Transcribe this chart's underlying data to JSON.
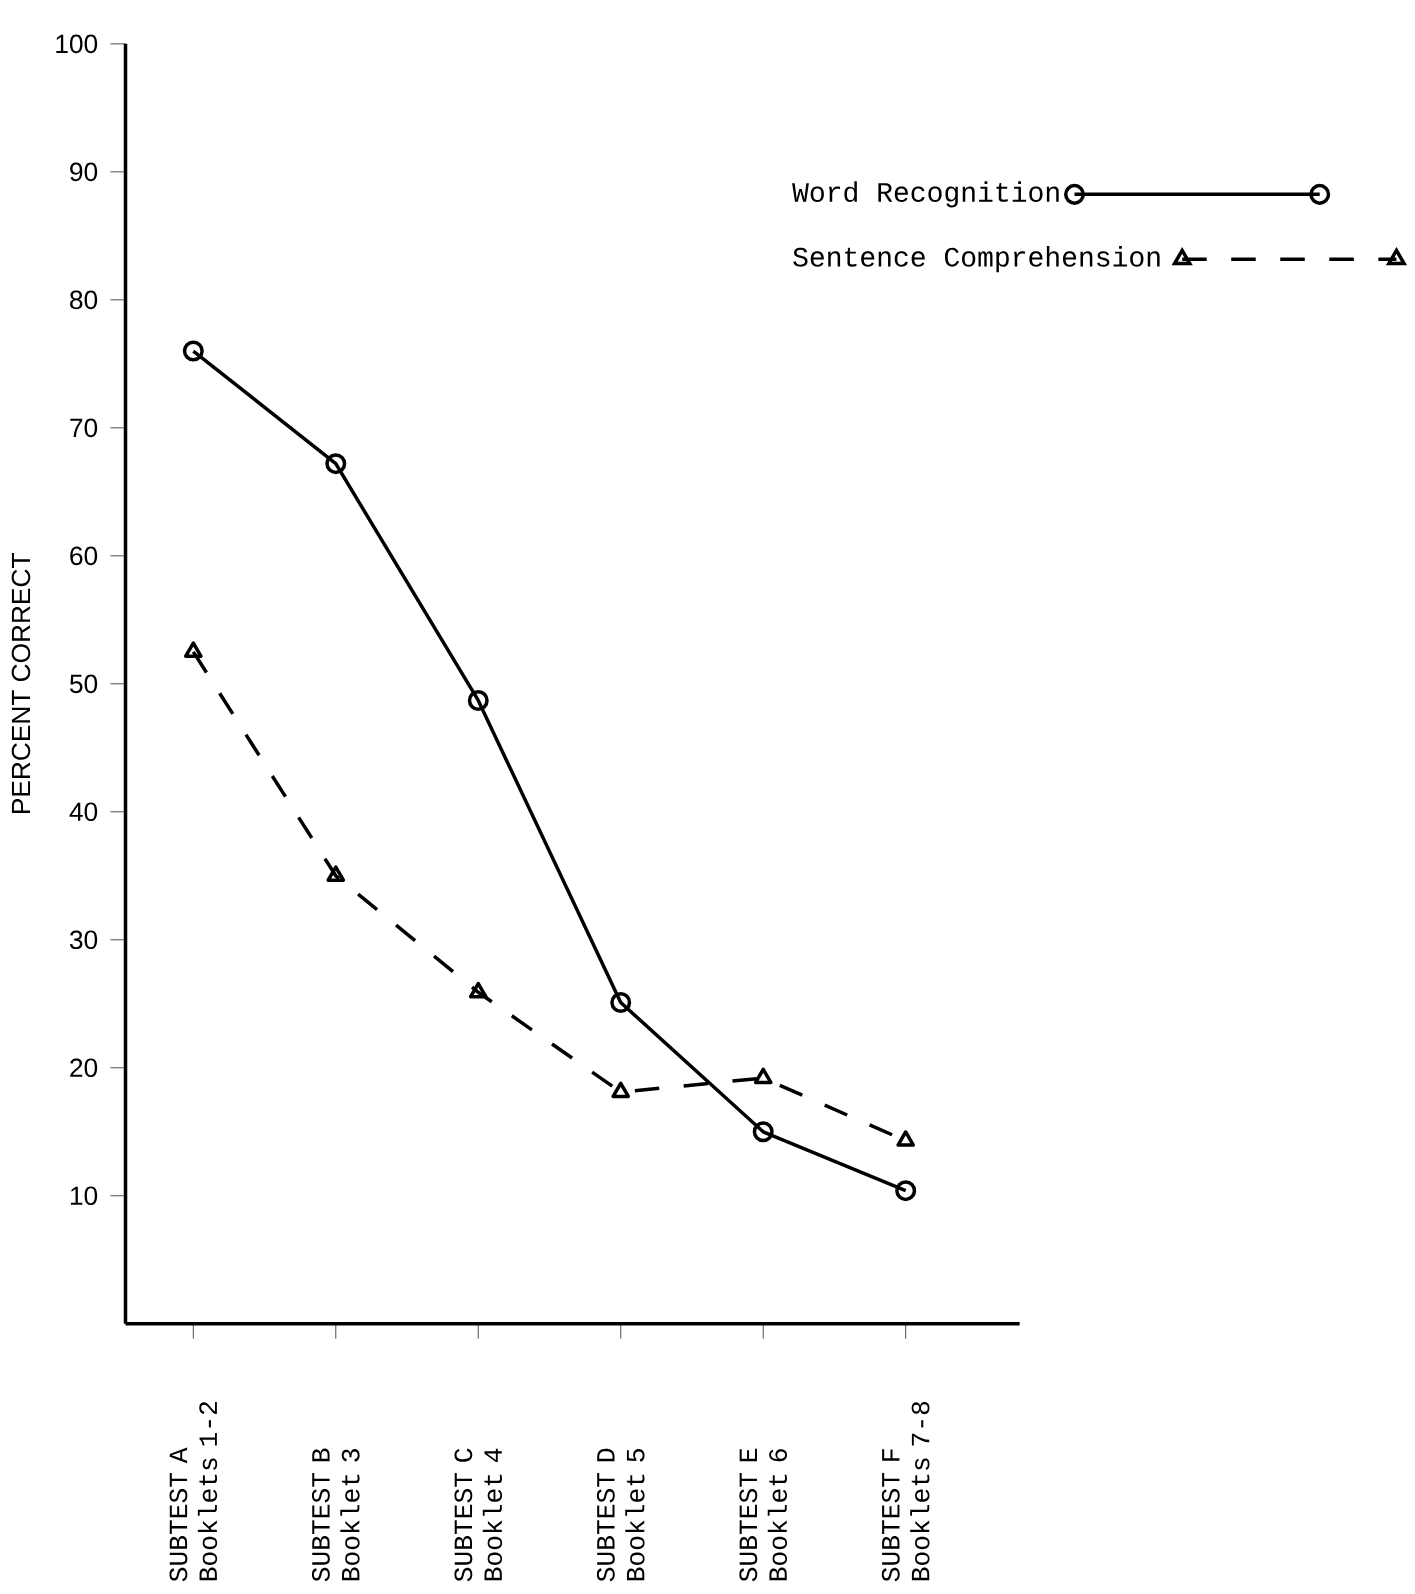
{
  "chart_data": {
    "type": "line",
    "ylabel": "PERCENT CORRECT",
    "categories": [
      "SUBTEST A Booklets 1-2",
      "SUBTEST B Booklet 3",
      "SUBTEST C Booklet 4",
      "SUBTEST D Booklet 5",
      "SUBTEST E Booklet 6",
      "SUBTEST F Booklets 7-8"
    ],
    "series": [
      {
        "name": "Word Recognition",
        "color": "#000000",
        "marker": "circle",
        "line_style": "solid",
        "values": [
          76,
          67.2,
          48.7,
          25.1,
          15,
          10.4
        ]
      },
      {
        "name": "Sentence Comprehension",
        "color": "#000000",
        "marker": "triangle",
        "line_style": "dashed",
        "values": [
          52.5,
          35,
          25.9,
          18.1,
          19.2,
          14.3
        ]
      }
    ],
    "ylim": [
      0,
      100
    ],
    "yticks": [
      10,
      20,
      30,
      40,
      50,
      60,
      70,
      80,
      90,
      100
    ],
    "grid": false,
    "legend": "top right"
  }
}
